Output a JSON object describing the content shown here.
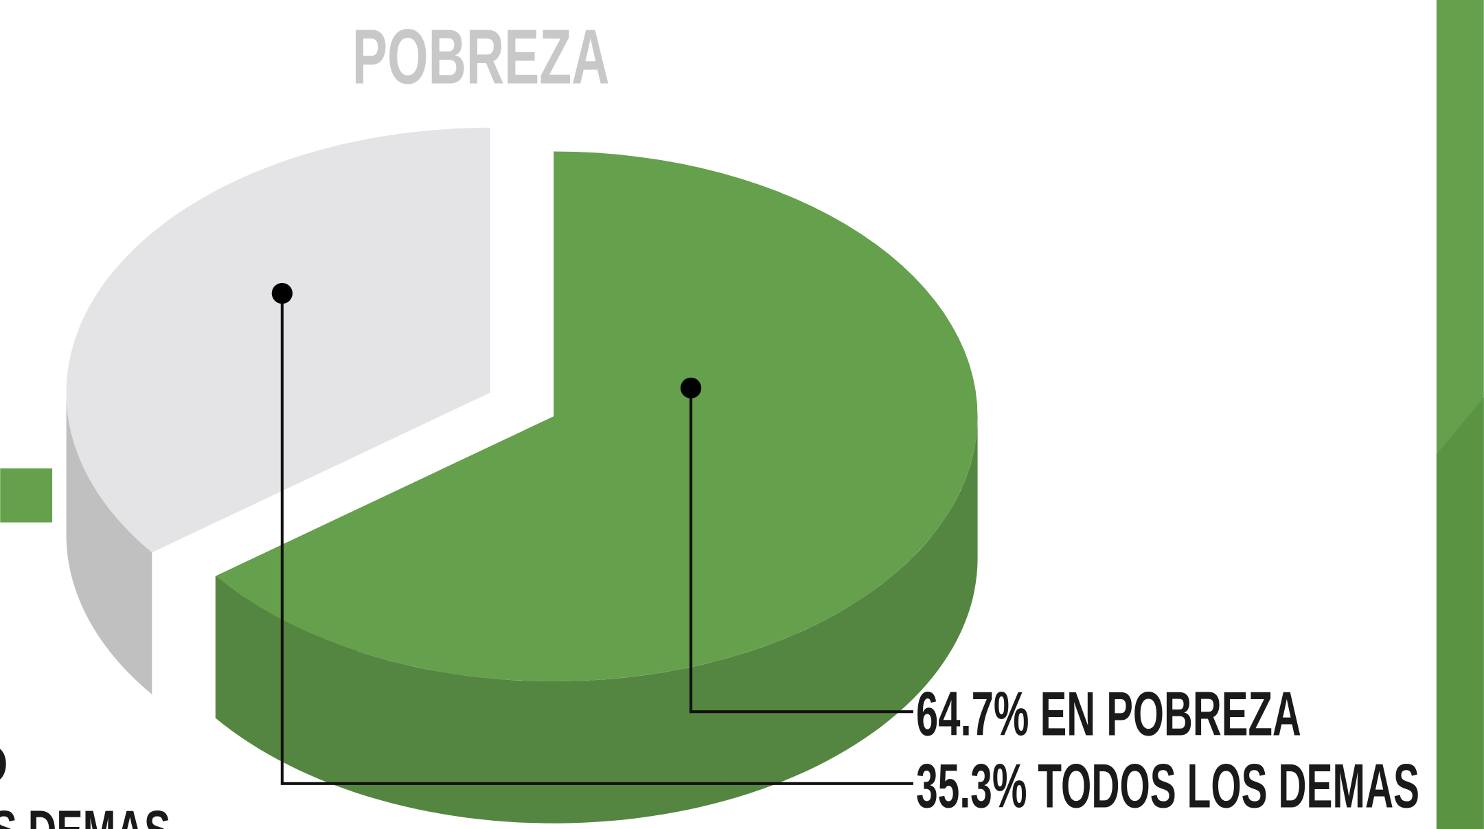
{
  "chart_data": {
    "type": "pie3d",
    "title": "POBREZA",
    "categories": [
      "EN POBREZA",
      "TODOS LOS DEMAS"
    ],
    "values": [
      64.7,
      35.3
    ],
    "value_labels": [
      "64.7%",
      "35.3%"
    ],
    "colors": [
      "#65a04d",
      "#e4e4e6"
    ],
    "explode": [
      false,
      true
    ]
  },
  "cropped_labels": [
    "O",
    "S DEMAS"
  ]
}
